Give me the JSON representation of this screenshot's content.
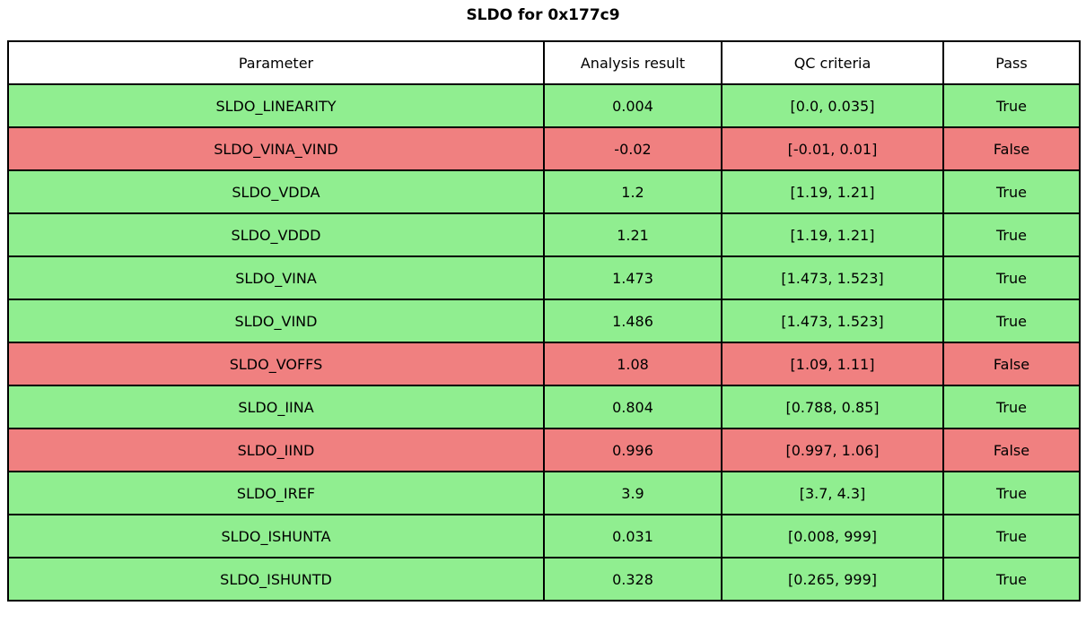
{
  "title": "SLDO for 0x177c9",
  "colors": {
    "pass_row": "#90ee90",
    "fail_row": "#f08080",
    "border": "#000000",
    "header_bg": "#ffffff",
    "text": "#000000"
  },
  "table": {
    "headers": [
      "Parameter",
      "Analysis result",
      "QC criteria",
      "Pass"
    ],
    "rows": [
      {
        "parameter": "SLDO_LINEARITY",
        "result": "0.004",
        "criteria": "[0.0, 0.035]",
        "pass": "True",
        "status": "pass"
      },
      {
        "parameter": "SLDO_VINA_VIND",
        "result": "-0.02",
        "criteria": "[-0.01, 0.01]",
        "pass": "False",
        "status": "fail"
      },
      {
        "parameter": "SLDO_VDDA",
        "result": "1.2",
        "criteria": "[1.19, 1.21]",
        "pass": "True",
        "status": "pass"
      },
      {
        "parameter": "SLDO_VDDD",
        "result": "1.21",
        "criteria": "[1.19, 1.21]",
        "pass": "True",
        "status": "pass"
      },
      {
        "parameter": "SLDO_VINA",
        "result": "1.473",
        "criteria": "[1.473, 1.523]",
        "pass": "True",
        "status": "pass"
      },
      {
        "parameter": "SLDO_VIND",
        "result": "1.486",
        "criteria": "[1.473, 1.523]",
        "pass": "True",
        "status": "pass"
      },
      {
        "parameter": "SLDO_VOFFS",
        "result": "1.08",
        "criteria": "[1.09, 1.11]",
        "pass": "False",
        "status": "fail"
      },
      {
        "parameter": "SLDO_IINA",
        "result": "0.804",
        "criteria": "[0.788, 0.85]",
        "pass": "True",
        "status": "pass"
      },
      {
        "parameter": "SLDO_IIND",
        "result": "0.996",
        "criteria": "[0.997, 1.06]",
        "pass": "False",
        "status": "fail"
      },
      {
        "parameter": "SLDO_IREF",
        "result": "3.9",
        "criteria": "[3.7, 4.3]",
        "pass": "True",
        "status": "pass"
      },
      {
        "parameter": "SLDO_ISHUNTA",
        "result": "0.031",
        "criteria": "[0.008, 999]",
        "pass": "True",
        "status": "pass"
      },
      {
        "parameter": "SLDO_ISHUNTD",
        "result": "0.328",
        "criteria": "[0.265, 999]",
        "pass": "True",
        "status": "pass"
      }
    ]
  },
  "chart_data": {
    "type": "table",
    "title": "SLDO for 0x177c9",
    "columns": [
      "Parameter",
      "Analysis result",
      "QC criteria",
      "Pass"
    ],
    "rows": [
      [
        "SLDO_LINEARITY",
        0.004,
        "[0.0, 0.035]",
        true
      ],
      [
        "SLDO_VINA_VIND",
        -0.02,
        "[-0.01, 0.01]",
        false
      ],
      [
        "SLDO_VDDA",
        1.2,
        "[1.19, 1.21]",
        true
      ],
      [
        "SLDO_VDDD",
        1.21,
        "[1.19, 1.21]",
        true
      ],
      [
        "SLDO_VINA",
        1.473,
        "[1.473, 1.523]",
        true
      ],
      [
        "SLDO_VIND",
        1.486,
        "[1.473, 1.523]",
        true
      ],
      [
        "SLDO_VOFFS",
        1.08,
        "[1.09, 1.11]",
        false
      ],
      [
        "SLDO_IINA",
        0.804,
        "[0.788, 0.85]",
        true
      ],
      [
        "SLDO_IIND",
        0.996,
        "[0.997, 1.06]",
        false
      ],
      [
        "SLDO_IREF",
        3.9,
        "[3.7, 4.3]",
        true
      ],
      [
        "SLDO_ISHUNTA",
        0.031,
        "[0.008, 999]",
        true
      ],
      [
        "SLDO_ISHUNTD",
        0.328,
        "[0.265, 999]",
        true
      ]
    ],
    "row_colors_by_pass": {
      "true": "#90ee90",
      "false": "#f08080"
    },
    "layout": {
      "title_position": "top-center",
      "cell_text_align": "center",
      "grid": true
    }
  }
}
